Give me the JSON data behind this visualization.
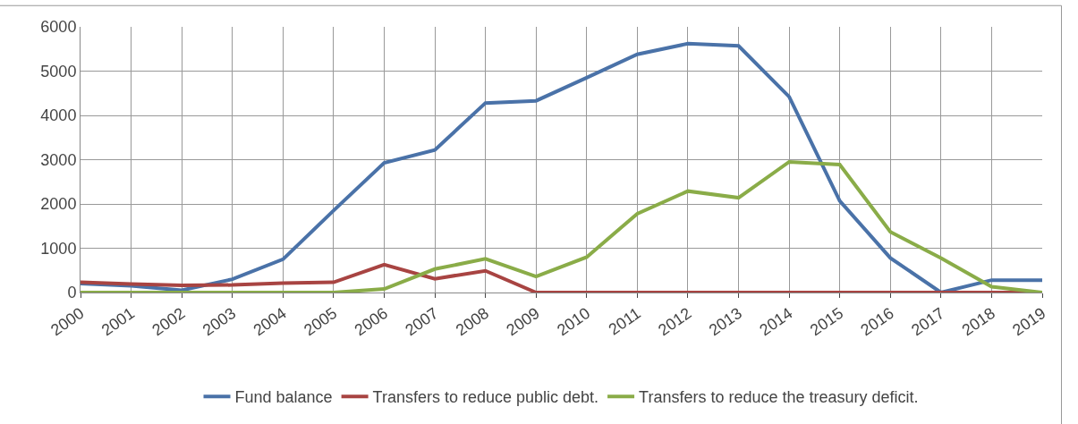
{
  "chart_data": {
    "type": "line",
    "categories": [
      "2000",
      "2001",
      "2002",
      "2003",
      "2004",
      "2005",
      "2006",
      "2007",
      "2008",
      "2009",
      "2010",
      "2011",
      "2012",
      "2013",
      "2014",
      "2015",
      "2016",
      "2017",
      "2018",
      "2019"
    ],
    "series": [
      {
        "name": "Fund balance",
        "color": "#4a72a8",
        "values": [
          200,
          150,
          50,
          300,
          750,
          1850,
          2930,
          3220,
          4280,
          4330,
          4850,
          5380,
          5620,
          5570,
          4420,
          2070,
          780,
          0,
          280,
          280
        ]
      },
      {
        "name": "Transfers to reduce public debt.",
        "color": "#a84442",
        "values": [
          230,
          190,
          160,
          170,
          210,
          230,
          630,
          310,
          490,
          0,
          0,
          0,
          0,
          0,
          0,
          0,
          0,
          0,
          0,
          0
        ]
      },
      {
        "name": "Transfers to reduce the treasury deficit.",
        "color": "#8aac48",
        "values": [
          0,
          0,
          0,
          0,
          0,
          0,
          80,
          530,
          760,
          360,
          800,
          1780,
          2290,
          2140,
          2950,
          2890,
          1370,
          780,
          130,
          0
        ]
      }
    ],
    "ylim": [
      0,
      6000
    ],
    "yticks": [
      0,
      1000,
      2000,
      3000,
      4000,
      5000,
      6000
    ],
    "grid": true,
    "legend": "bottom",
    "marker": "none",
    "line_style": "solid"
  }
}
